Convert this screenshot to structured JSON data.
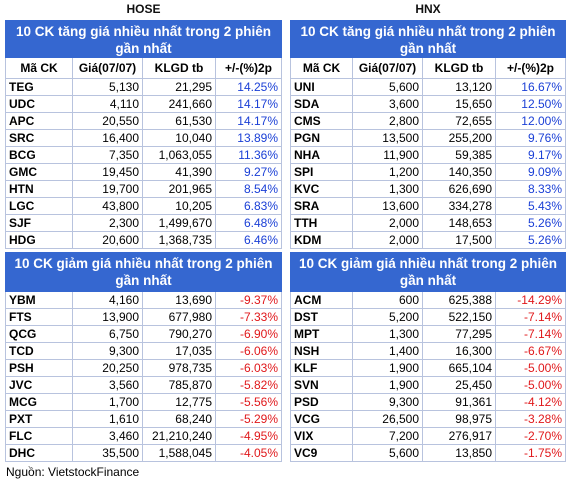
{
  "exchanges": [
    {
      "name": "HOSE",
      "gainers": {
        "title": "10 CK tăng giá nhiều nhất trong 2 phiên gần nhất",
        "columns": [
          "Mã CK",
          "Giá(07/07)",
          "KLGD tb",
          "+/-(%)2p"
        ],
        "rows": [
          [
            "TEG",
            "5,130",
            "21,295",
            "14.25%"
          ],
          [
            "UDC",
            "4,110",
            "241,660",
            "14.17%"
          ],
          [
            "APC",
            "20,550",
            "61,530",
            "14.17%"
          ],
          [
            "SRC",
            "16,400",
            "10,040",
            "13.89%"
          ],
          [
            "BCG",
            "7,350",
            "1,063,055",
            "11.36%"
          ],
          [
            "GMC",
            "19,450",
            "41,390",
            "9.27%"
          ],
          [
            "HTN",
            "19,700",
            "201,965",
            "8.54%"
          ],
          [
            "LGC",
            "43,800",
            "10,205",
            "6.83%"
          ],
          [
            "SJF",
            "2,300",
            "1,499,670",
            "6.48%"
          ],
          [
            "HDG",
            "20,600",
            "1,368,735",
            "6.46%"
          ]
        ]
      },
      "losers": {
        "title": "10 CK giảm giá nhiều nhất trong 2 phiên gần nhất",
        "rows": [
          [
            "YBM",
            "4,160",
            "13,690",
            "-9.37%"
          ],
          [
            "FTS",
            "13,900",
            "677,980",
            "-7.33%"
          ],
          [
            "QCG",
            "6,750",
            "790,270",
            "-6.90%"
          ],
          [
            "TCD",
            "9,300",
            "17,035",
            "-6.06%"
          ],
          [
            "PSH",
            "20,250",
            "978,735",
            "-6.03%"
          ],
          [
            "JVC",
            "3,560",
            "785,870",
            "-5.82%"
          ],
          [
            "MCG",
            "1,700",
            "12,775",
            "-5.56%"
          ],
          [
            "PXT",
            "1,610",
            "68,240",
            "-5.29%"
          ],
          [
            "FLC",
            "3,460",
            "21,210,240",
            "-4.95%"
          ],
          [
            "DHC",
            "35,500",
            "1,588,045",
            "-4.05%"
          ]
        ]
      }
    },
    {
      "name": "HNX",
      "gainers": {
        "title": "10 CK tăng giá nhiều nhất trong 2 phiên gần nhất",
        "columns": [
          "Mã CK",
          "Giá(07/07)",
          "KLGD tb",
          "+/-(%)2p"
        ],
        "rows": [
          [
            "UNI",
            "5,600",
            "13,120",
            "16.67%"
          ],
          [
            "SDA",
            "3,600",
            "15,650",
            "12.50%"
          ],
          [
            "CMS",
            "2,800",
            "72,655",
            "12.00%"
          ],
          [
            "PGN",
            "13,500",
            "255,200",
            "9.76%"
          ],
          [
            "NHA",
            "11,900",
            "59,385",
            "9.17%"
          ],
          [
            "SPI",
            "1,200",
            "140,350",
            "9.09%"
          ],
          [
            "KVC",
            "1,300",
            "626,690",
            "8.33%"
          ],
          [
            "SRA",
            "13,600",
            "334,278",
            "5.43%"
          ],
          [
            "TTH",
            "2,000",
            "148,653",
            "5.26%"
          ],
          [
            "KDM",
            "2,000",
            "17,500",
            "5.26%"
          ]
        ]
      },
      "losers": {
        "title": "10 CK giảm giá nhiều nhất trong 2 phiên gần nhất",
        "rows": [
          [
            "ACM",
            "600",
            "625,388",
            "-14.29%"
          ],
          [
            "DST",
            "5,200",
            "522,150",
            "-7.14%"
          ],
          [
            "MPT",
            "1,300",
            "77,295",
            "-7.14%"
          ],
          [
            "NSH",
            "1,400",
            "16,300",
            "-6.67%"
          ],
          [
            "KLF",
            "1,900",
            "665,104",
            "-5.00%"
          ],
          [
            "SVN",
            "1,900",
            "25,450",
            "-5.00%"
          ],
          [
            "PSD",
            "9,300",
            "91,361",
            "-4.12%"
          ],
          [
            "VCG",
            "26,500",
            "98,975",
            "-3.28%"
          ],
          [
            "VIX",
            "7,200",
            "276,917",
            "-2.70%"
          ],
          [
            "VC9",
            "5,600",
            "13,850",
            "-1.75%"
          ]
        ]
      }
    }
  ],
  "source": "Nguồn: VietstockFinance"
}
